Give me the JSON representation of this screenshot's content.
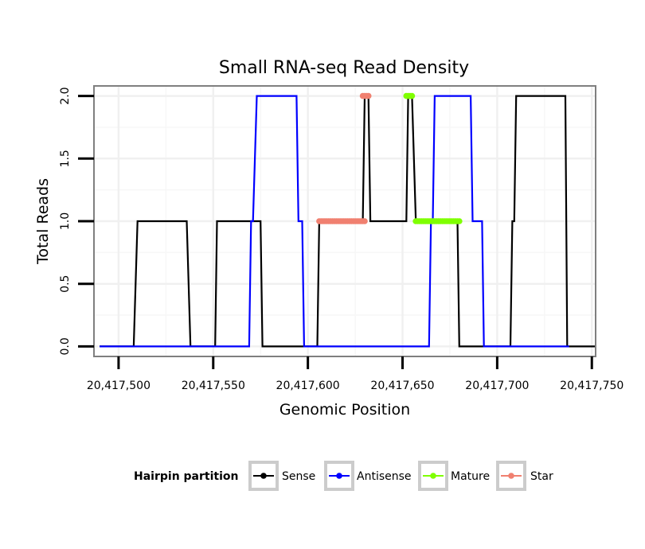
{
  "chart_data": {
    "type": "line",
    "title": "Small RNA-seq Read Density",
    "xlabel": "Genomic Position",
    "ylabel": "Total Reads",
    "xlim": [
      20417487,
      20417752
    ],
    "ylim": [
      -0.08,
      2.08
    ],
    "x_ticks": [
      20417500,
      20417550,
      20417600,
      20417650,
      20417700,
      20417750
    ],
    "x_tick_labels": [
      "20,417,500",
      "20,417,550",
      "20,417,600",
      "20,417,650",
      "20,417,700",
      "20,417,750"
    ],
    "y_ticks": [
      0,
      0.5,
      1,
      1.5,
      2
    ],
    "y_tick_labels": [
      "0.0",
      "0.5",
      "1.0",
      "1.5",
      "2.0"
    ],
    "grid": true,
    "legend": {
      "title": "Hairpin partition",
      "position": "bottom",
      "entries": [
        "Sense",
        "Antisense",
        "Mature",
        "Star"
      ]
    },
    "series": [
      {
        "name": "Sense",
        "color": "#000000",
        "style": "line",
        "points": [
          [
            20417490,
            0
          ],
          [
            20417508,
            0
          ],
          [
            20417510,
            1
          ],
          [
            20417536,
            1
          ],
          [
            20417538,
            0
          ],
          [
            20417551,
            0
          ],
          [
            20417552,
            1
          ],
          [
            20417573,
            1
          ],
          [
            20417575,
            1
          ],
          [
            20417576,
            0
          ],
          [
            20417605,
            0
          ],
          [
            20417606,
            1
          ],
          [
            20417629,
            1
          ],
          [
            20417630,
            2
          ],
          [
            20417632,
            2
          ],
          [
            20417633,
            1
          ],
          [
            20417652,
            1
          ],
          [
            20417653,
            2
          ],
          [
            20417655,
            2
          ],
          [
            20417657,
            1
          ],
          [
            20417679,
            1
          ],
          [
            20417680,
            0
          ],
          [
            20417707,
            0
          ],
          [
            20417708,
            1
          ],
          [
            20417709,
            1
          ],
          [
            20417710,
            2
          ],
          [
            20417736,
            2
          ],
          [
            20417737,
            0
          ],
          [
            20417752,
            0
          ]
        ]
      },
      {
        "name": "Antisense",
        "color": "#0000ff",
        "style": "line",
        "points": [
          [
            20417490,
            0
          ],
          [
            20417569,
            0
          ],
          [
            20417570,
            1
          ],
          [
            20417571,
            1
          ],
          [
            20417573,
            2
          ],
          [
            20417594,
            2
          ],
          [
            20417595,
            1
          ],
          [
            20417597,
            1
          ],
          [
            20417598,
            0
          ],
          [
            20417664,
            0
          ],
          [
            20417665,
            1
          ],
          [
            20417666,
            1
          ],
          [
            20417667,
            2
          ],
          [
            20417686,
            2
          ],
          [
            20417687,
            1
          ],
          [
            20417692,
            1
          ],
          [
            20417693,
            0
          ],
          [
            20417738,
            0
          ]
        ]
      },
      {
        "name": "Mature",
        "color": "#7fff00",
        "style": "points",
        "segments": [
          {
            "x": [
              20417652,
              20417655
            ],
            "y": 2
          },
          {
            "x": [
              20417657,
              20417680
            ],
            "y": 1
          }
        ]
      },
      {
        "name": "Star",
        "color": "#f08070",
        "style": "points",
        "segments": [
          {
            "x": [
              20417606,
              20417630
            ],
            "y": 1
          },
          {
            "x": [
              20417629,
              20417632
            ],
            "y": 2
          }
        ]
      }
    ]
  }
}
